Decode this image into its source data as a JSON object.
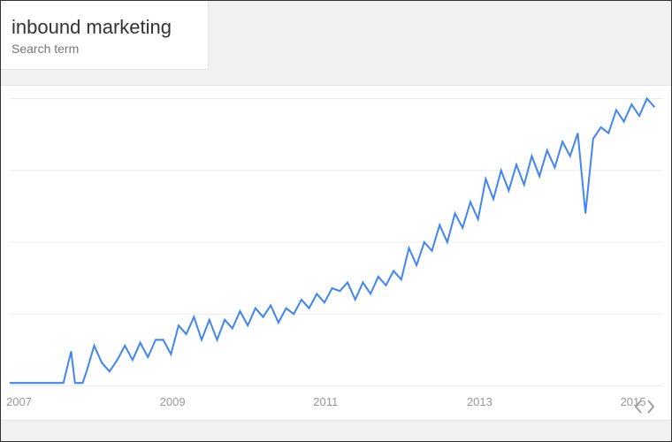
{
  "term_card": {
    "title": "inbound marketing",
    "subtitle": "Search term"
  },
  "chart": {
    "type": "line",
    "line_color": "#4285f4",
    "line_width": 2,
    "background_color": "#ffffff",
    "grid_color": "#ececec",
    "grid_rows": 4,
    "x_axis": {
      "min": 2007,
      "max": 2015.5,
      "tick_labels": [
        "2007",
        "2009",
        "2011",
        "2013",
        "2015"
      ],
      "tick_positions": [
        2007,
        2009,
        2011,
        2013,
        2015
      ],
      "label_color": "#999999",
      "label_fontsize": 13
    },
    "y_axis": {
      "min": 0,
      "max": 100
    },
    "series": {
      "name": "interest_over_time",
      "x": [
        2007.0,
        2007.1,
        2007.2,
        2007.3,
        2007.4,
        2007.5,
        2007.6,
        2007.7,
        2007.8,
        2007.85,
        2007.9,
        2007.95,
        2008.0,
        2008.1,
        2008.2,
        2008.3,
        2008.4,
        2008.5,
        2008.6,
        2008.7,
        2008.8,
        2008.9,
        2009.0,
        2009.1,
        2009.2,
        2009.3,
        2009.4,
        2009.5,
        2009.6,
        2009.7,
        2009.8,
        2009.9,
        2010.0,
        2010.1,
        2010.2,
        2010.3,
        2010.4,
        2010.5,
        2010.6,
        2010.7,
        2010.8,
        2010.9,
        2011.0,
        2011.1,
        2011.2,
        2011.3,
        2011.4,
        2011.5,
        2011.6,
        2011.7,
        2011.8,
        2011.9,
        2012.0,
        2012.1,
        2012.2,
        2012.3,
        2012.4,
        2012.5,
        2012.6,
        2012.7,
        2012.8,
        2012.9,
        2013.0,
        2013.1,
        2013.2,
        2013.3,
        2013.4,
        2013.5,
        2013.6,
        2013.7,
        2013.8,
        2013.9,
        2014.0,
        2014.1,
        2014.2,
        2014.3,
        2014.4,
        2014.5,
        2014.6,
        2014.7,
        2014.8,
        2014.9,
        2015.0,
        2015.1,
        2015.2,
        2015.3,
        2015.4
      ],
      "y": [
        1,
        1,
        1,
        1,
        1,
        1,
        1,
        1,
        12,
        1,
        1,
        1,
        5,
        14,
        8,
        5,
        9,
        14,
        9,
        15,
        10,
        16,
        16,
        11,
        21,
        18,
        24,
        16,
        23,
        16,
        23,
        20,
        26,
        21,
        27,
        24,
        28,
        22,
        27,
        25,
        30,
        27,
        32,
        29,
        34,
        33,
        36,
        30,
        36,
        32,
        38,
        35,
        40,
        37,
        48,
        42,
        50,
        47,
        56,
        50,
        60,
        55,
        64,
        58,
        72,
        65,
        75,
        68,
        77,
        70,
        80,
        73,
        82,
        76,
        85,
        80,
        88,
        60,
        86,
        90,
        88,
        96,
        92,
        98,
        94,
        100,
        97
      ]
    }
  },
  "embed_button": {
    "tooltip": "Embed"
  },
  "colors": {
    "frame_border": "#333333",
    "header_bg": "#f1f1f1",
    "card_border": "#e5e5e5"
  }
}
